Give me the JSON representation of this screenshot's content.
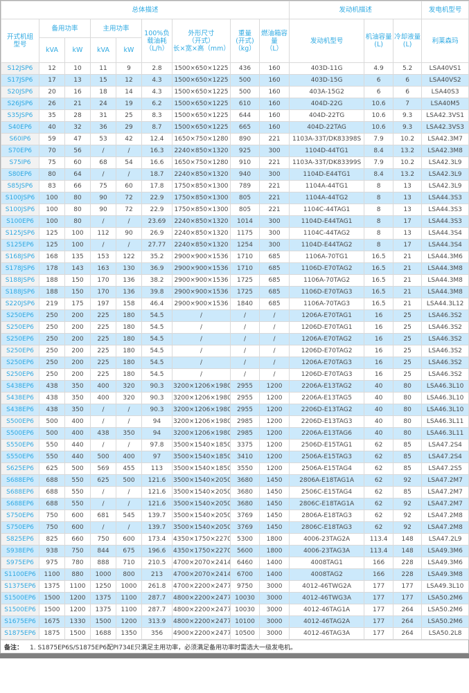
{
  "colors": {
    "header_text": "#31aae2",
    "alt_row_bg": "#cce9fb",
    "model_col_bg": "#f2f2f2",
    "border": "#d9d9d9",
    "bottom_bar": "#7f7f7f"
  },
  "table": {
    "header": {
      "group_overall": "总体描述",
      "group_engine": "发动机描述",
      "group_generator": "发电机型号",
      "col_model": "开式机组\n型号",
      "standby_power": "备用功率",
      "prime_power": "主用功率",
      "kva": "kVA",
      "kw": "kW",
      "fuel_consumption": "100%负\n载油耗\n（L/h）",
      "dimensions": "外形尺寸\n（开式）\n长×宽×高（mm）",
      "weight": "重量\n(开式)\n（kg）",
      "fuel_tank": "燃油箱容\n量\n（L）",
      "engine_model": "发动机型号",
      "oil_capacity": "机油容量\n(L)",
      "coolant_capacity": "冷却液量\n(L)",
      "generator_brand": "利莱森玛"
    },
    "rows": [
      [
        "S12JSP6",
        "12",
        "10",
        "11",
        "9",
        "2.8",
        "1500×650×1225",
        "436",
        "160",
        "403D-11G",
        "4.9",
        "5.2",
        "LSA40VS1"
      ],
      [
        "S17JSP6",
        "17",
        "13",
        "15",
        "12",
        "4.3",
        "1500×650×1225",
        "500",
        "160",
        "403D-15G",
        "6",
        "6",
        "LSA40VS2"
      ],
      [
        "S20JSP6",
        "20",
        "16",
        "18",
        "14",
        "4.3",
        "1500×650×1225",
        "500",
        "160",
        "403A-15G2",
        "6",
        "6",
        "LSA40S3"
      ],
      [
        "S26JSP6",
        "26",
        "21",
        "24",
        "19",
        "6.2",
        "1500×650×1225",
        "610",
        "160",
        "404D-22G",
        "10.6",
        "7",
        "LSA40M5"
      ],
      [
        "S35JSP6",
        "35",
        "28",
        "31",
        "25",
        "8.3",
        "1500×650×1225",
        "644",
        "160",
        "404D-22TG",
        "10.6",
        "9.3",
        "LSA42.3VS1"
      ],
      [
        "S40EP6",
        "40",
        "32",
        "36",
        "29",
        "8.7",
        "1500×650×1225",
        "665",
        "160",
        "404D-22TAG",
        "10.6",
        "9.3",
        "LSA42.3VS3"
      ],
      [
        "S60IP6",
        "59",
        "47",
        "53",
        "42",
        "12.4",
        "1650×750×1280",
        "890",
        "221",
        "1103A-33T/DK83398S",
        "7.9",
        "10.2",
        "LSA42.3M7"
      ],
      [
        "S70EP6",
        "70",
        "56",
        "/",
        "/",
        "16.3",
        "2240×850×1320",
        "925",
        "300",
        "1104D-44TG1",
        "8.4",
        "13.2",
        "LSA42.3M8"
      ],
      [
        "S75IP6",
        "75",
        "60",
        "68",
        "54",
        "16.6",
        "1650×750×1280",
        "910",
        "221",
        "1103A-33T/DK83399S",
        "7.9",
        "10.2",
        "LSA42.3L9"
      ],
      [
        "S80EP6",
        "80",
        "64",
        "/",
        "/",
        "18.7",
        "2240×850×1320",
        "940",
        "300",
        "1104D-E44TG1",
        "8.4",
        "13.2",
        "LSA42.3L9"
      ],
      [
        "S85JSP6",
        "83",
        "66",
        "75",
        "60",
        "17.8",
        "1750×850×1300",
        "789",
        "221",
        "1104A-44TG1",
        "8",
        "13",
        "LSA42.3L9"
      ],
      [
        "S100JSP6",
        "100",
        "80",
        "90",
        "72",
        "22.9",
        "1750×850×1300",
        "805",
        "221",
        "1104A-44TG2",
        "8",
        "13",
        "LSA44.3S3"
      ],
      [
        "S100JSP6",
        "100",
        "80",
        "90",
        "72",
        "22.9",
        "1750×850×1300",
        "805",
        "221",
        "1104C-44TAG1",
        "8",
        "13",
        "LSA44.3S3"
      ],
      [
        "S100EP6",
        "100",
        "80",
        "/",
        "/",
        "23.69",
        "2240×850×1320",
        "1014",
        "300",
        "1104D-E44TAG1",
        "8",
        "17",
        "LSA44.3S3"
      ],
      [
        "S125JSP6",
        "125",
        "100",
        "112",
        "90",
        "26.9",
        "2240×850×1320",
        "1175",
        "300",
        "1104C-44TAG2",
        "8",
        "13",
        "LSA44.3S4"
      ],
      [
        "S125EP6",
        "125",
        "100",
        "/",
        "/",
        "27.77",
        "2240×850×1320",
        "1254",
        "300",
        "1104D-E44TAG2",
        "8",
        "17",
        "LSA44.3S4"
      ],
      [
        "S168JSP6",
        "168",
        "135",
        "153",
        "122",
        "35.2",
        "2900×900×1536",
        "1710",
        "685",
        "1106A-70TG1",
        "16.5",
        "21",
        "LSA44.3M6"
      ],
      [
        "S178JSP6",
        "178",
        "143",
        "163",
        "130",
        "36.9",
        "2900×900×1536",
        "1710",
        "685",
        "1106D-E70TAG2",
        "16.5",
        "21",
        "LSA44.3M8"
      ],
      [
        "S188JSP6",
        "188",
        "150",
        "170",
        "136",
        "38.2",
        "2900×900×1536",
        "1725",
        "685",
        "1106A-70TAG2",
        "16.5",
        "21",
        "LSA44.3M8"
      ],
      [
        "S188JSP6",
        "188",
        "150",
        "170",
        "136",
        "39.8",
        "2900×900×1536",
        "1725",
        "685",
        "1106D-E70TAG3",
        "16.5",
        "21",
        "LSA44.3M8"
      ],
      [
        "S220JSP6",
        "219",
        "175",
        "197",
        "158",
        "46.4",
        "2900×900×1536",
        "1840",
        "685",
        "1106A-70TAG3",
        "16.5",
        "21",
        "LSA44.3L12"
      ],
      [
        "S250EP6",
        "250",
        "200",
        "225",
        "180",
        "54.5",
        "/",
        "/",
        "/",
        "1206A-E70TAG1",
        "16",
        "25",
        "LSA46.3S2"
      ],
      [
        "S250EP6",
        "250",
        "200",
        "225",
        "180",
        "54.5",
        "/",
        "/",
        "/",
        "1206D-E70TAG1",
        "16",
        "25",
        "LSA46.3S2"
      ],
      [
        "S250EP6",
        "250",
        "200",
        "225",
        "180",
        "54.5",
        "/",
        "/",
        "/",
        "1206A-E70TAG2",
        "16",
        "25",
        "LSA46.3S2"
      ],
      [
        "S250EP6",
        "250",
        "200",
        "225",
        "180",
        "54.5",
        "/",
        "/",
        "/",
        "1206D-E70TAG2",
        "16",
        "25",
        "LSA46.3S2"
      ],
      [
        "S250EP6",
        "250",
        "200",
        "225",
        "180",
        "54.5",
        "/",
        "/",
        "/",
        "1206A-E70TAG3",
        "16",
        "25",
        "LSA46.3S2"
      ],
      [
        "S250EP6",
        "250",
        "200",
        "225",
        "180",
        "54.5",
        "/",
        "/",
        "/",
        "1206D-E70TAG3",
        "16",
        "25",
        "LSA46.3S2"
      ],
      [
        "S438EP6",
        "438",
        "350",
        "400",
        "320",
        "90.3",
        "3200×1206×1980",
        "2955",
        "1200",
        "2206A-E13TAG2",
        "40",
        "80",
        "LSA46.3L10"
      ],
      [
        "S438EP6",
        "438",
        "350",
        "400",
        "320",
        "90.3",
        "3200×1206×1980",
        "2955",
        "1200",
        "2206A-E13TAG5",
        "40",
        "80",
        "LSA46.3L10"
      ],
      [
        "S438EP6",
        "438",
        "350",
        "/",
        "/",
        "90.3",
        "3200×1206×1980",
        "2955",
        "1200",
        "2206D-E13TAG2",
        "40",
        "80",
        "LSA46.3L10"
      ],
      [
        "S500EP6",
        "500",
        "400",
        "/",
        "/",
        "94",
        "3200×1206×1980",
        "2985",
        "1200",
        "2206D-E13TAG3",
        "40",
        "80",
        "LSA46.3L11"
      ],
      [
        "S500EP6",
        "500",
        "400",
        "438",
        "350",
        "94",
        "3200×1206×1980",
        "2985",
        "1200",
        "2206A-E13TAG6",
        "40",
        "80",
        "LSA46.3L11"
      ],
      [
        "S550EP6",
        "550",
        "440",
        "/",
        "/",
        "97.8",
        "3500×1540×1850",
        "3375",
        "1200",
        "2506D-E15TAG1",
        "62",
        "85",
        "LSA47.2S4"
      ],
      [
        "S550EP6",
        "550",
        "440",
        "500",
        "400",
        "97",
        "3500×1540×1850",
        "3410",
        "1200",
        "2506A-E15TAG3",
        "62",
        "85",
        "LSA47.2S4"
      ],
      [
        "S625EP6",
        "625",
        "500",
        "569",
        "455",
        "113",
        "3500×1540×1850",
        "3550",
        "1200",
        "2506A-E15TAG4",
        "62",
        "85",
        "LSA47.2S5"
      ],
      [
        "S688EP6",
        "688",
        "550",
        "625",
        "500",
        "121.6",
        "3500×1540×2050",
        "3680",
        "1450",
        "2806A-E18TAG1A",
        "62",
        "92",
        "LSA47.2M7"
      ],
      [
        "S688EP6",
        "688",
        "550",
        "/",
        "/",
        "121.6",
        "3500×1540×2050",
        "3680",
        "1450",
        "2506C-E15TAG4",
        "62",
        "85",
        "LSA47.2M7"
      ],
      [
        "S688EP6",
        "688",
        "550",
        "/",
        "/",
        "121.6",
        "3500×1540×2050",
        "3680",
        "1450",
        "2806C-E18TAG1A",
        "62",
        "92",
        "LSA47.2M7"
      ],
      [
        "S750EP6",
        "750",
        "600",
        "681",
        "545",
        "139.7",
        "3500×1540×2050",
        "3769",
        "1450",
        "2806A-E18TAG3",
        "62",
        "92",
        "LSA47.2M8"
      ],
      [
        "S750EP6",
        "750",
        "600",
        "/",
        "/",
        "139.7",
        "3500×1540×2050",
        "3769",
        "1450",
        "2806C-E18TAG3",
        "62",
        "92",
        "LSA47.2M8"
      ],
      [
        "S825EP6",
        "825",
        "660",
        "750",
        "600",
        "173.4",
        "4350×1750×2270",
        "5300",
        "1800",
        "4006-23TAG2A",
        "113.4",
        "148",
        "LSA47.2L9"
      ],
      [
        "S938EP6",
        "938",
        "750",
        "844",
        "675",
        "196.6",
        "4350×1750×2270",
        "5600",
        "1800",
        "4006-23TAG3A",
        "113.4",
        "148",
        "LSA49.3M6"
      ],
      [
        "S975EP6",
        "975",
        "780",
        "888",
        "710",
        "210.5",
        "4700×2070×2414",
        "6460",
        "1400",
        "4008TAG1",
        "166",
        "228",
        "LSA49.3M6"
      ],
      [
        "S1100EP6",
        "1100",
        "880",
        "1000",
        "800",
        "213",
        "4700×2070×2414",
        "6700",
        "1400",
        "4008TAG2",
        "166",
        "228",
        "LSA49.3M8"
      ],
      [
        "S1375EP6",
        "1375",
        "1100",
        "1250",
        "1000",
        "261.8",
        "4700×2200×2477",
        "9750",
        "3000",
        "4012-46TWG2A",
        "177",
        "177",
        "LSA49.3L10"
      ],
      [
        "S1500EP6",
        "1500",
        "1200",
        "1375",
        "1100",
        "287.7",
        "4800×2200×2477",
        "10030",
        "3000",
        "4012-46TWG3A",
        "177",
        "177",
        "LSA50.2M6"
      ],
      [
        "S1500EP6",
        "1500",
        "1200",
        "1375",
        "1100",
        "287.7",
        "4800×2200×2477",
        "10030",
        "3000",
        "4012-46TAG1A",
        "177",
        "264",
        "LSA50.2M6"
      ],
      [
        "S1675EP6",
        "1675",
        "1330",
        "1500",
        "1200",
        "313.9",
        "4800×2200×2477",
        "10100",
        "3000",
        "4012-46TAG2A",
        "177",
        "264",
        "LSA50.2M6"
      ],
      [
        "S1875EP6",
        "1875",
        "1500",
        "1688",
        "1350",
        "356",
        "4900×2200×2477",
        "10500",
        "3000",
        "4012-46TAG3A",
        "177",
        "264",
        "LSA50.2L8"
      ]
    ]
  },
  "note": {
    "label": "备注：",
    "text": "1. S1875EP6S/S1875EP6配PI734E只满足主用功率，必须满足备用功率时需选大一级发电机。"
  }
}
